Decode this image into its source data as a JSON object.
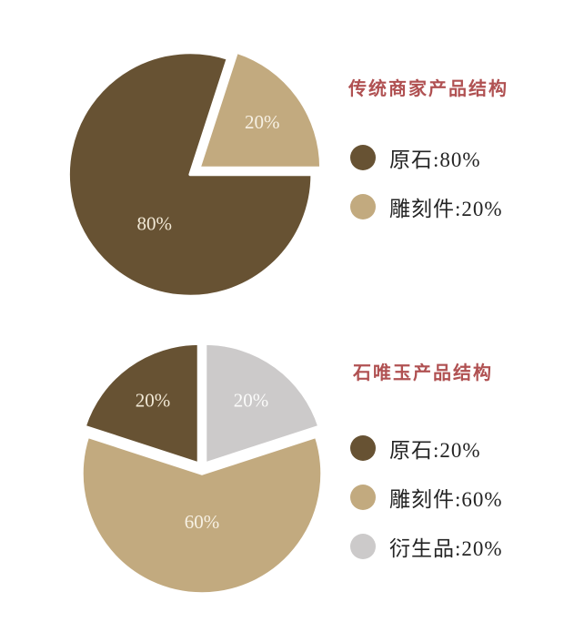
{
  "page": {
    "background": "#FFFFFF"
  },
  "chart_data": [
    {
      "type": "pie",
      "title": "传统商家产品结构",
      "title_color": "#B05152",
      "legend_position": "right",
      "radius": 134,
      "start_angle": 90,
      "explode": 6,
      "gap_color": "#FFFFFF",
      "gap_width": 3.5,
      "slices": [
        {
          "key": "raw-stone",
          "label": "原石",
          "value": 80,
          "color": "#675233",
          "label_text": "80%",
          "label_color": "#F2E9D6",
          "label_angle": 216,
          "label_radius": 0.5
        },
        {
          "key": "carved-pieces",
          "label": "雕刻件",
          "value": 20,
          "color": "#C2AA7F",
          "label_text": "20%",
          "label_color": "#F7F1E4",
          "label_angle": 54,
          "label_radius": 0.64
        }
      ],
      "legend": [
        {
          "key": "raw-stone",
          "swatch_color": "#675233",
          "text": "原石:80%"
        },
        {
          "key": "carved-pieces",
          "swatch_color": "#C2AA7F",
          "text": "雕刻件:20%"
        }
      ]
    },
    {
      "type": "pie",
      "title": "石唯玉产品结构",
      "title_color": "#B05152",
      "legend_position": "right",
      "radius": 132,
      "start_angle": 0,
      "explode": 6,
      "gap_color": "#FFFFFF",
      "gap_width": 3.5,
      "slices": [
        {
          "key": "derivatives",
          "label": "衍生品",
          "value": 20,
          "color": "#CCCACA",
          "label_text": "20%",
          "label_color": "#FBFBFA",
          "label_angle": 36,
          "label_radius": 0.65
        },
        {
          "key": "carved-pieces",
          "label": "雕刻件",
          "value": 60,
          "color": "#C2AA7F",
          "label_text": "60%",
          "label_color": "#F7F1E4",
          "label_angle": 180,
          "label_radius": 0.4
        },
        {
          "key": "raw-stone",
          "label": "原石",
          "value": 20,
          "color": "#675233",
          "label_text": "20%",
          "label_color": "#F2E9D6",
          "label_angle": 324,
          "label_radius": 0.65
        }
      ],
      "legend": [
        {
          "key": "raw-stone",
          "swatch_color": "#675233",
          "text": "原石:20%"
        },
        {
          "key": "carved-pieces",
          "swatch_color": "#C2AA7F",
          "text": "雕刻件:60%"
        },
        {
          "key": "derivatives",
          "swatch_color": "#CCCACA",
          "text": "衍生品:20%"
        }
      ]
    }
  ]
}
